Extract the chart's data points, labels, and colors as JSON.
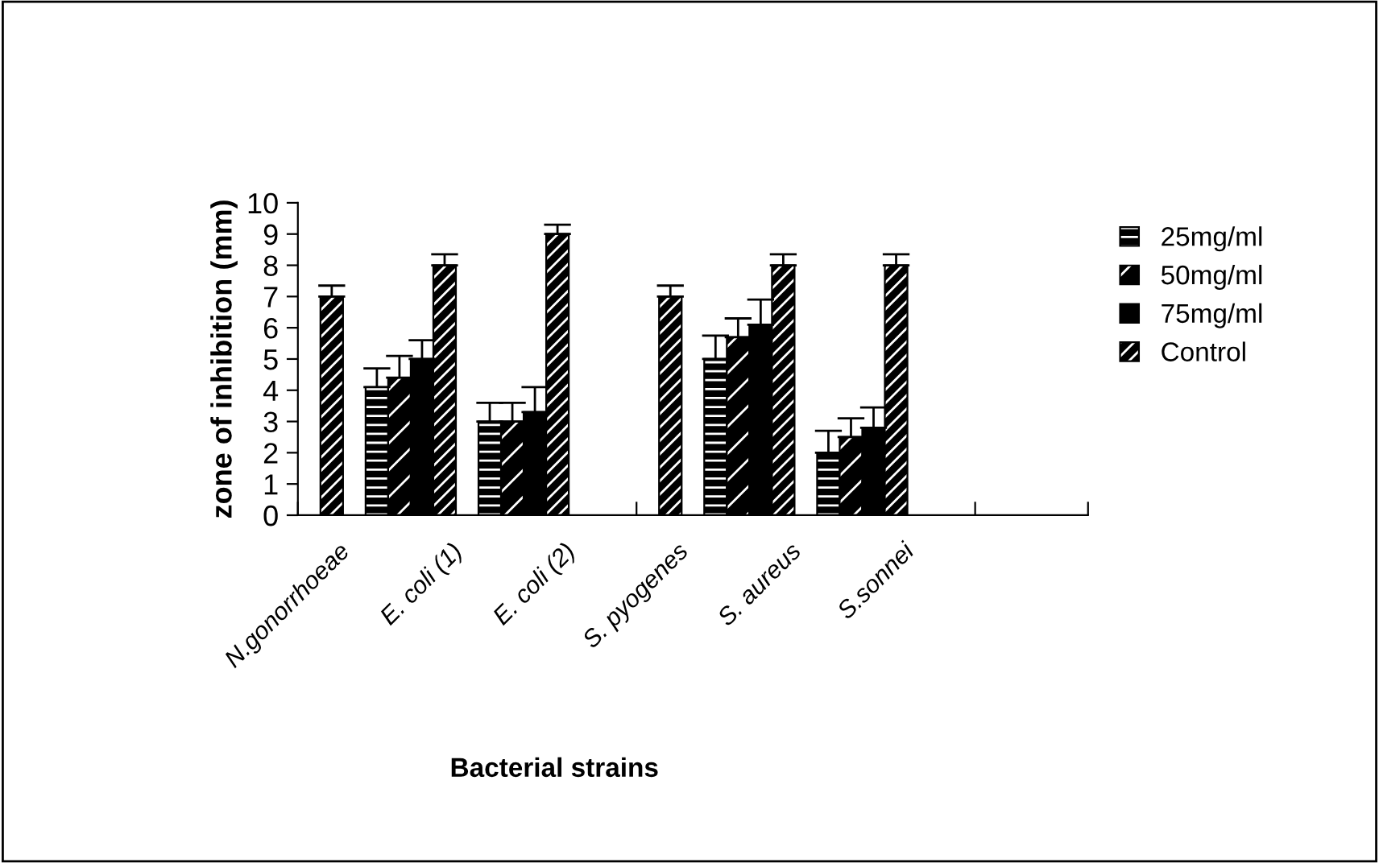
{
  "chart_data": {
    "type": "bar",
    "xlabel": "Bacterial strains",
    "ylabel": "zone of inhibition (mm)",
    "categories": [
      "N.gonorrhoeae",
      "E. coli (1)",
      "E. coli (2)",
      "S. pyogenes",
      "S. aureus",
      "S.sonnei",
      null
    ],
    "series": [
      {
        "name": "25mg/ml",
        "color": "#000000",
        "values": [
          null,
          4.1,
          3.0,
          null,
          5.0,
          2.0,
          null
        ],
        "errors": [
          null,
          0.6,
          0.6,
          null,
          0.75,
          0.7,
          null
        ]
      },
      {
        "name": "50mg/ml",
        "color": "#000000",
        "values": [
          null,
          4.4,
          3.0,
          null,
          5.7,
          2.5,
          null
        ],
        "errors": [
          null,
          0.7,
          0.6,
          null,
          0.6,
          0.6,
          null
        ]
      },
      {
        "name": "75mg/ml",
        "color": "#000000",
        "values": [
          null,
          5.0,
          3.3,
          null,
          6.1,
          2.8,
          null
        ],
        "errors": [
          null,
          0.6,
          0.8,
          null,
          0.8,
          0.65,
          null
        ]
      },
      {
        "name": "Control",
        "color": "#000000",
        "values": [
          7.0,
          8.0,
          9.0,
          7.0,
          8.0,
          8.0,
          null
        ],
        "errors": [
          0.35,
          0.35,
          0.3,
          0.35,
          0.35,
          0.35,
          null
        ]
      }
    ],
    "ylim": [
      0,
      10
    ],
    "yticks": [
      0,
      1,
      2,
      3,
      4,
      5,
      6,
      7,
      8,
      9,
      10
    ],
    "grid": false,
    "legend": "right"
  }
}
